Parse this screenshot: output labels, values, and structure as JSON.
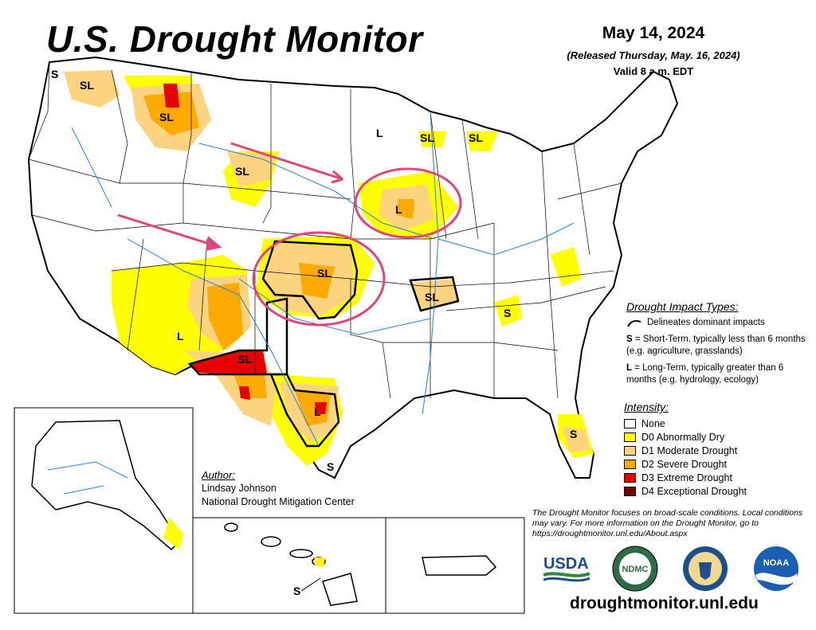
{
  "header": {
    "title": "U.S. Drought Monitor",
    "date": "May 14, 2024",
    "released": "(Released Thursday, May. 16, 2024)",
    "valid": "Valid 8 a.m. EDT"
  },
  "impact_types": {
    "heading": "Drought Impact Types:",
    "delineates": "Delineates dominant impacts",
    "short_term_key": "S",
    "short_term_text": "= Short-Term, typically less than 6 months (e.g. agriculture, grasslands)",
    "long_term_key": "L",
    "long_term_text": "= Long-Term, typically greater than 6 months (e.g. hydrology, ecology)"
  },
  "intensity": {
    "heading": "Intensity:",
    "levels": [
      {
        "label": "None",
        "color": "#ffffff"
      },
      {
        "label": "D0 Abnormally Dry",
        "color": "#ffff00"
      },
      {
        "label": "D1 Moderate Drought",
        "color": "#fcd37f"
      },
      {
        "label": "D2 Severe Drought",
        "color": "#ffaa00"
      },
      {
        "label": "D3 Extreme Drought",
        "color": "#e60000"
      },
      {
        "label": "D4 Exceptional Drought",
        "color": "#730000"
      }
    ]
  },
  "author": {
    "heading": "Author:",
    "name": "Lindsay Johnson",
    "org": "National Drought Mitigation Center"
  },
  "note": "The Drought Monitor focuses on broad-scale conditions. Local conditions may vary. For more information on the Drought Monitor, go to https://droughtmonitor.unl.edu/About.aspx",
  "url": "droughtmonitor.unl.edu",
  "map_labels": [
    "S",
    "SL",
    "SL",
    "SL",
    "L",
    "SL",
    "SL",
    "L",
    "SL",
    "SL",
    "L",
    "SL",
    "L",
    "S",
    "S",
    "S",
    "S"
  ],
  "logos": {
    "usda": "USDA",
    "ndmc": "NDMC",
    "noaa": "NOAA"
  },
  "colors": {
    "d0": "#ffff00",
    "d1": "#fcd37f",
    "d2": "#ffaa00",
    "d3": "#e60000",
    "d4": "#730000",
    "annotation": "#e0457b",
    "rivers": "#2a7fd4"
  }
}
